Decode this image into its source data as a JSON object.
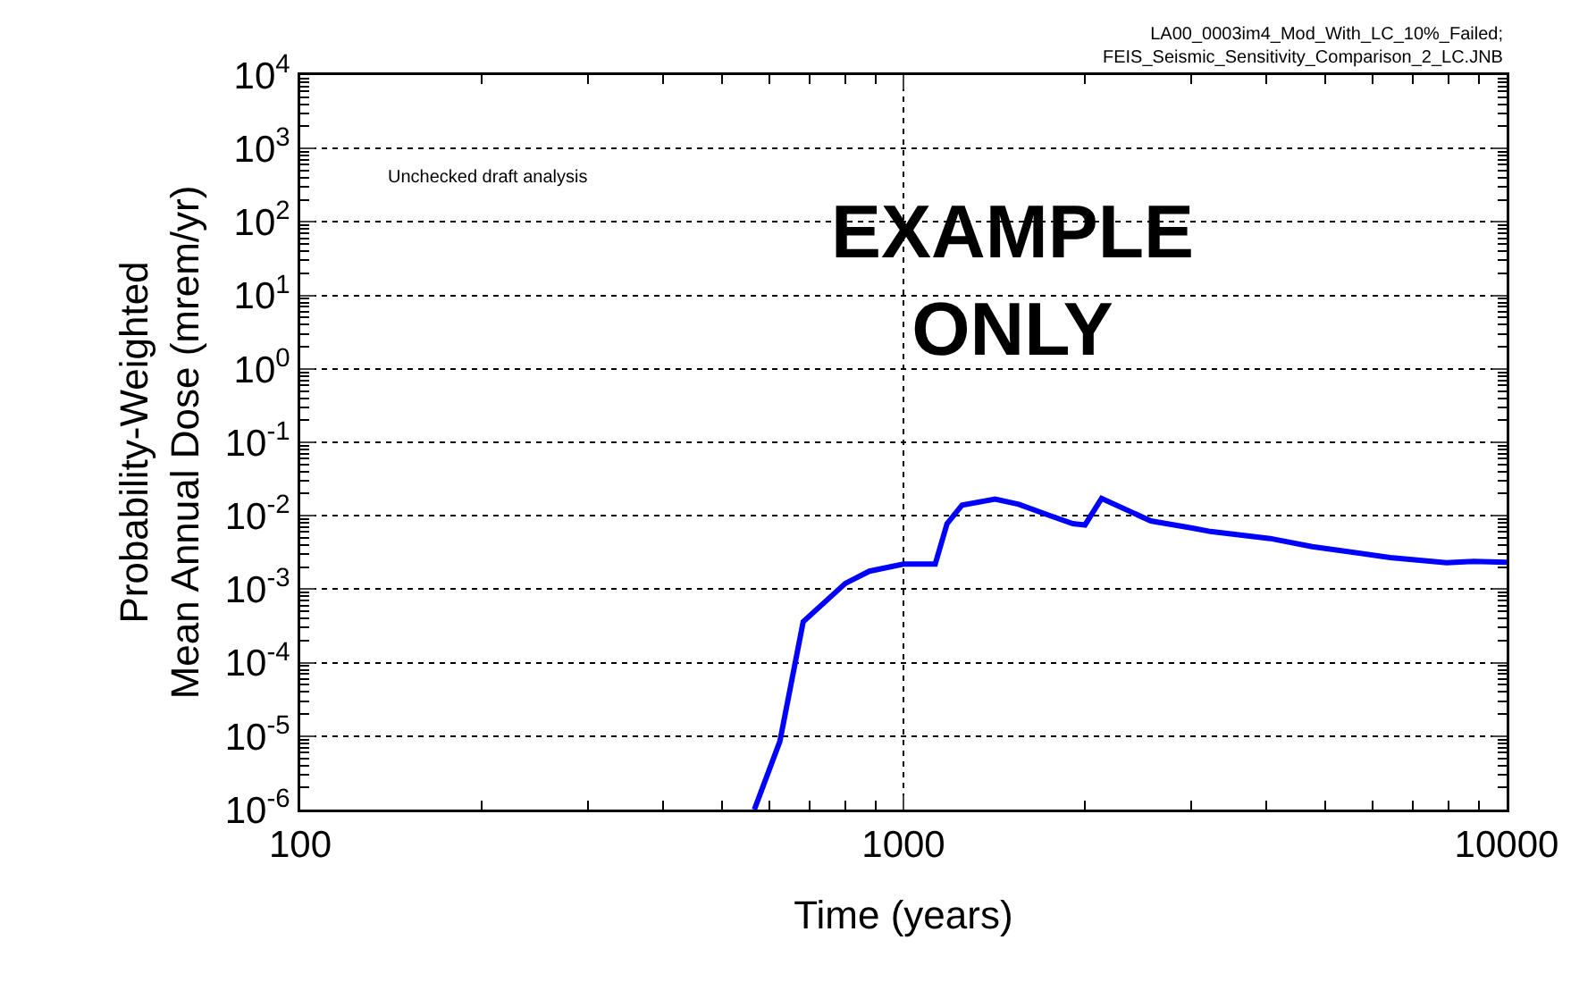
{
  "chart_data": {
    "type": "line",
    "xlabel": "Time (years)",
    "ylabel": "Probability-Weighted\nMean Annual Dose (mrem/yr)",
    "log": "xy",
    "grid": true,
    "marker": "none",
    "line_style": "solid",
    "xlim": [
      100,
      10000
    ],
    "xticks": [
      100,
      1000,
      10000
    ],
    "ylim": [
      1e-06,
      10000
    ],
    "yticks": [
      {
        "value": 1e-06,
        "label": "10$^{-6}$"
      },
      {
        "value": 1e-05,
        "label": "10$^{-5}$"
      },
      {
        "value": 0.0001,
        "label": "10$^{-4}$"
      },
      {
        "value": 0.001,
        "label": "10$^{-3}$"
      },
      {
        "value": 0.01,
        "label": "10$^{-2}$"
      },
      {
        "value": 0.1,
        "label": "10$^{-1}$"
      },
      {
        "value": 1,
        "label": "10$^{0}$"
      },
      {
        "value": 10,
        "label": "10$^{1}$"
      },
      {
        "value": 100,
        "label": "10$^{2}$"
      },
      {
        "value": 1000,
        "label": "10$^{3}$"
      },
      {
        "value": 10000,
        "label": "10$^{4}$"
      }
    ],
    "series": [
      {
        "color": "#0000ff",
        "x": [
          566,
          624,
          682,
          801,
          878,
          1000,
          1129,
          1181,
          1251,
          1419,
          1553,
          1740,
          1909,
          2000,
          2130,
          2572,
          3014,
          3229,
          4055,
          4760,
          6410,
          7950,
          8810,
          10000
        ],
        "values": [
          1e-06,
          8.5e-06,
          0.00036,
          0.0012,
          0.00176,
          0.0022,
          0.0022,
          0.0078,
          0.014,
          0.0169,
          0.0143,
          0.0102,
          0.0078,
          0.0075,
          0.0172,
          0.0085,
          0.0068,
          0.0061,
          0.0049,
          0.0038,
          0.0027,
          0.0023,
          0.0024,
          0.00233
        ]
      }
    ],
    "annotations": [
      "LA00_0003im4_Mod_With_LC_10%_Failed;\nFEIS_Seismic_Sensitivity_Comparison_2_LC.JNB",
      "Unchecked draft analysis",
      "EXAMPLE\nONLY"
    ]
  }
}
